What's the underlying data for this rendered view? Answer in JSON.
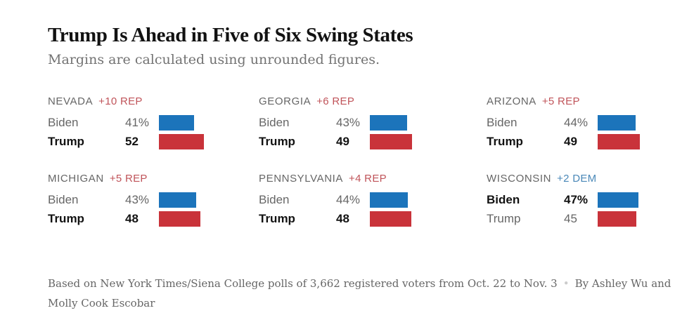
{
  "header": {
    "title": "Trump Is Ahead in Five of Six Swing States",
    "subtitle": "Margins are calculated using unrounded figures."
  },
  "colors": {
    "dem": "#1c74bb",
    "rep": "#c9333a",
    "dem_label": "#4a88b8",
    "rep_label": "#c0545a"
  },
  "chart_data": {
    "type": "bar",
    "title": "Trump Is Ahead in Five of Six Swing States",
    "subtitle": "Margins are calculated using unrounded figures.",
    "unit": "%",
    "xlim": [
      0,
      60
    ],
    "series_names": [
      "Biden",
      "Trump"
    ],
    "states": [
      {
        "name": "NEVADA",
        "margin": "+10 REP",
        "margin_party": "rep",
        "winner": "Trump",
        "rows": [
          {
            "candidate": "Biden",
            "value": 41,
            "label": "41%",
            "party": "dem"
          },
          {
            "candidate": "Trump",
            "value": 52,
            "label": "52",
            "party": "rep"
          }
        ]
      },
      {
        "name": "GEORGIA",
        "margin": "+6 REP",
        "margin_party": "rep",
        "winner": "Trump",
        "rows": [
          {
            "candidate": "Biden",
            "value": 43,
            "label": "43%",
            "party": "dem"
          },
          {
            "candidate": "Trump",
            "value": 49,
            "label": "49",
            "party": "rep"
          }
        ]
      },
      {
        "name": "ARIZONA",
        "margin": "+5 REP",
        "margin_party": "rep",
        "winner": "Trump",
        "rows": [
          {
            "candidate": "Biden",
            "value": 44,
            "label": "44%",
            "party": "dem"
          },
          {
            "candidate": "Trump",
            "value": 49,
            "label": "49",
            "party": "rep"
          }
        ]
      },
      {
        "name": "MICHIGAN",
        "margin": "+5 REP",
        "margin_party": "rep",
        "winner": "Trump",
        "rows": [
          {
            "candidate": "Biden",
            "value": 43,
            "label": "43%",
            "party": "dem"
          },
          {
            "candidate": "Trump",
            "value": 48,
            "label": "48",
            "party": "rep"
          }
        ]
      },
      {
        "name": "PENNSYLVANIA",
        "margin": "+4 REP",
        "margin_party": "rep",
        "winner": "Trump",
        "rows": [
          {
            "candidate": "Biden",
            "value": 44,
            "label": "44%",
            "party": "dem"
          },
          {
            "candidate": "Trump",
            "value": 48,
            "label": "48",
            "party": "rep"
          }
        ]
      },
      {
        "name": "WISCONSIN",
        "margin": "+2 DEM",
        "margin_party": "dem",
        "winner": "Biden",
        "rows": [
          {
            "candidate": "Biden",
            "value": 47,
            "label": "47%",
            "party": "dem"
          },
          {
            "candidate": "Trump",
            "value": 45,
            "label": "45",
            "party": "rep"
          }
        ]
      }
    ]
  },
  "footer": {
    "source": "Based on New York Times/Siena College polls of 3,662 registered voters from Oct. 22 to Nov. 3",
    "separator": "•",
    "byline": "By Ashley Wu and Molly Cook Escobar"
  }
}
